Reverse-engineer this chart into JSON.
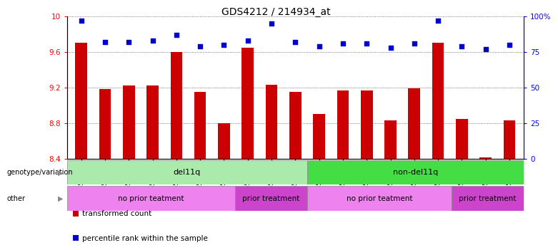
{
  "title": "GDS4212 / 214934_at",
  "samples": [
    "GSM652229",
    "GSM652230",
    "GSM652232",
    "GSM652233",
    "GSM652234",
    "GSM652235",
    "GSM652236",
    "GSM652231",
    "GSM652237",
    "GSM652238",
    "GSM652241",
    "GSM652242",
    "GSM652243",
    "GSM652244",
    "GSM652245",
    "GSM652247",
    "GSM652239",
    "GSM652240",
    "GSM652246"
  ],
  "bar_values": [
    9.7,
    9.18,
    9.22,
    9.22,
    9.6,
    9.15,
    8.8,
    9.65,
    9.23,
    9.15,
    8.9,
    9.17,
    9.17,
    8.83,
    9.19,
    9.7,
    8.85,
    8.41,
    8.83
  ],
  "dot_values": [
    97,
    82,
    82,
    83,
    87,
    79,
    80,
    83,
    95,
    82,
    79,
    81,
    81,
    78,
    81,
    97,
    79,
    77,
    80
  ],
  "ylim_left": [
    8.4,
    10.0
  ],
  "ylim_right": [
    0,
    100
  ],
  "yticks_left": [
    8.4,
    8.8,
    9.2,
    9.6,
    10.0
  ],
  "ytick_labels_left": [
    "8.4",
    "8.8",
    "9.2",
    "9.6",
    "10"
  ],
  "yticks_right": [
    0,
    25,
    50,
    75,
    100
  ],
  "ytick_labels_right": [
    "0",
    "25",
    "50",
    "75",
    "100%"
  ],
  "bar_color": "#cc0000",
  "dot_color": "#0000cc",
  "bar_width": 0.5,
  "genotype_groups": [
    {
      "label": "del11q",
      "start": 0,
      "end": 10,
      "color": "#aaeaaa"
    },
    {
      "label": "non-del11q",
      "start": 10,
      "end": 19,
      "color": "#44dd44"
    }
  ],
  "other_groups": [
    {
      "label": "no prior teatment",
      "start": 0,
      "end": 7,
      "color": "#ee82ee"
    },
    {
      "label": "prior treatment",
      "start": 7,
      "end": 10,
      "color": "#cc44cc"
    },
    {
      "label": "no prior teatment",
      "start": 10,
      "end": 16,
      "color": "#ee82ee"
    },
    {
      "label": "prior treatment",
      "start": 16,
      "end": 19,
      "color": "#cc44cc"
    }
  ],
  "legend_items": [
    {
      "label": "transformed count",
      "color": "#cc0000"
    },
    {
      "label": "percentile rank within the sample",
      "color": "#0000cc"
    }
  ],
  "genotype_label": "genotype/variation",
  "other_label": "other",
  "bg_color": "#ffffff",
  "grid_color": "#555555",
  "title_fontsize": 10
}
